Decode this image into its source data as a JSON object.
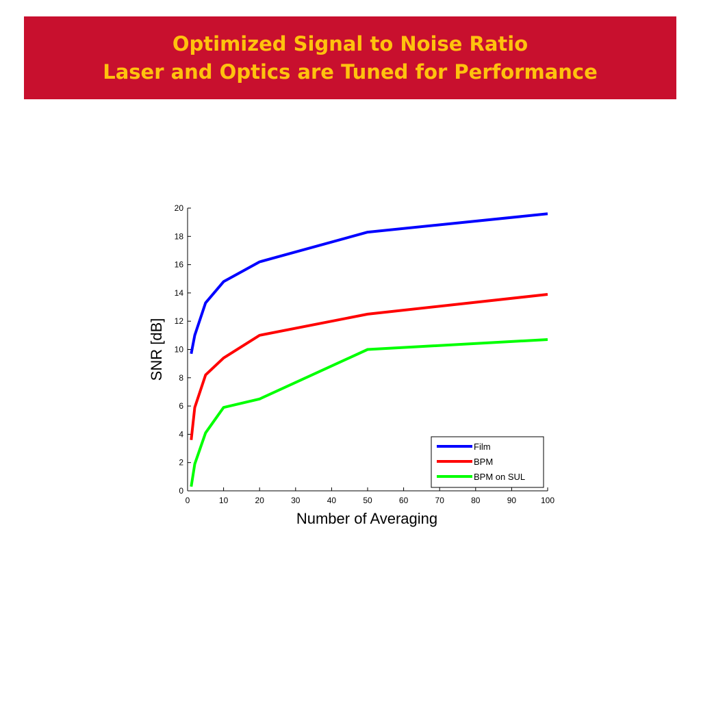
{
  "header": {
    "title_line1": "Optimized Signal to Noise Ratio",
    "title_line2": "Laser and Optics are Tuned for Performance",
    "background_color": "#c8102e",
    "text_color": "#ffc20e"
  },
  "chart_data": {
    "type": "line",
    "xlabel": "Number of Averaging",
    "ylabel": "SNR [dB]",
    "xlim": [
      0,
      100
    ],
    "ylim": [
      0,
      20
    ],
    "xticks": [
      0,
      10,
      20,
      30,
      40,
      50,
      60,
      70,
      80,
      90,
      100
    ],
    "yticks": [
      0,
      2,
      4,
      6,
      8,
      10,
      12,
      14,
      16,
      18,
      20
    ],
    "grid": false,
    "legend_position": "bottom-right",
    "x": [
      1,
      2,
      5,
      10,
      20,
      50,
      100
    ],
    "series": [
      {
        "name": "Film",
        "color": "#0000ff",
        "values": [
          9.7,
          11.0,
          13.3,
          14.8,
          16.2,
          18.3,
          19.6
        ]
      },
      {
        "name": "BPM",
        "color": "#ff0000",
        "values": [
          3.6,
          5.9,
          8.2,
          9.4,
          11.0,
          12.5,
          13.9
        ]
      },
      {
        "name": "BPM on SUL",
        "color": "#00ff00",
        "values": [
          0.3,
          1.9,
          4.1,
          5.9,
          6.5,
          10.0,
          10.7
        ]
      }
    ]
  }
}
